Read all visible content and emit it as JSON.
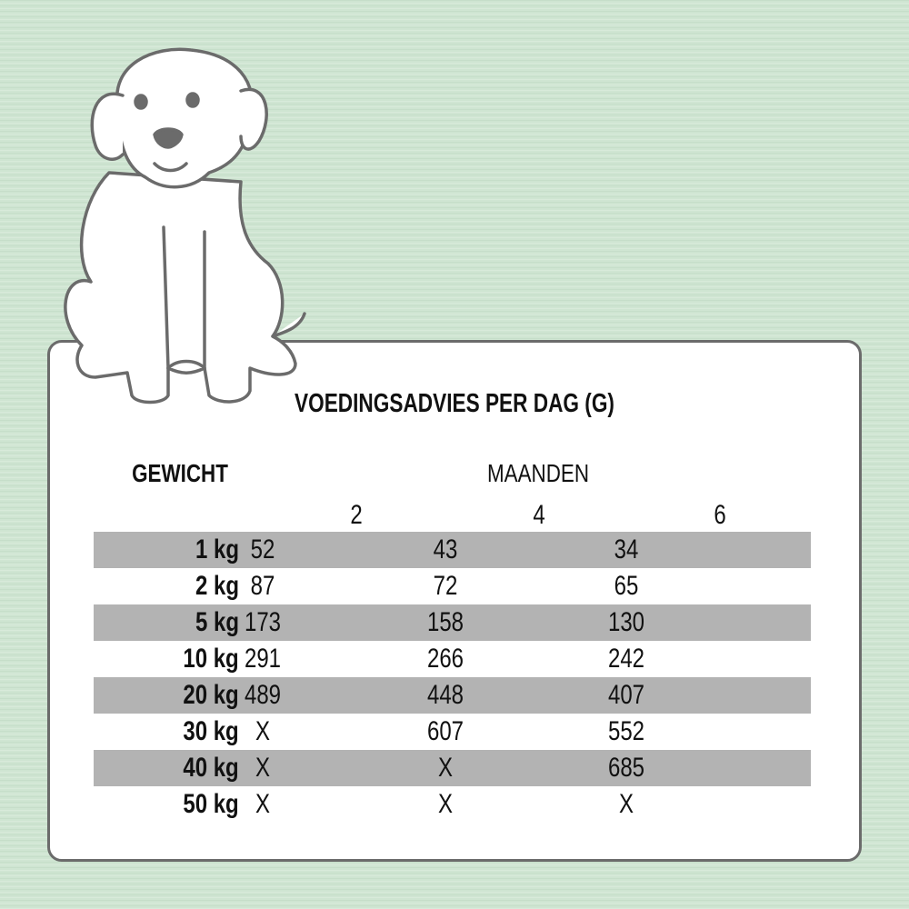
{
  "title": "VOEDINGSADVIES PER DAG (G)",
  "weight_header": "GEWICHT",
  "months_header": "MAANDEN",
  "months": [
    "2",
    "4",
    "6"
  ],
  "rows": [
    {
      "weight": "1 kg",
      "values": [
        "52",
        "43",
        "34"
      ]
    },
    {
      "weight": "2 kg",
      "values": [
        "87",
        "72",
        "65"
      ]
    },
    {
      "weight": "5 kg",
      "values": [
        "173",
        "158",
        "130"
      ]
    },
    {
      "weight": "10 kg",
      "values": [
        "291",
        "266",
        "242"
      ]
    },
    {
      "weight": "20 kg",
      "values": [
        "489",
        "448",
        "407"
      ]
    },
    {
      "weight": "30 kg",
      "values": [
        "X",
        "607",
        "552"
      ]
    },
    {
      "weight": "40 kg",
      "values": [
        "X",
        "X",
        "685"
      ]
    },
    {
      "weight": "50 kg",
      "values": [
        "X",
        "X",
        "X"
      ]
    }
  ],
  "colors": {
    "background": "#cfe5d2",
    "row_shade": "#b3b3b3",
    "border": "#6b6b6b"
  },
  "illustration": "puppy-outline"
}
